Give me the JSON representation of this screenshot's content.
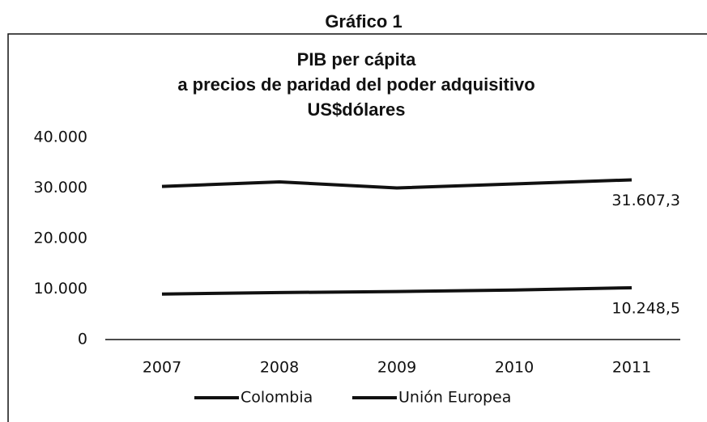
{
  "heading": "Gráfico 1",
  "chart_data": {
    "type": "line",
    "title": [
      "PIB per cápita",
      "a precios de paridad del poder adquisitivo",
      "US$dólares"
    ],
    "categories": [
      "2007",
      "2008",
      "2009",
      "2010",
      "2011"
    ],
    "series": [
      {
        "name": "Colombia",
        "color": "#111111",
        "values": [
          9000,
          9300,
          9500,
          9800,
          10248.5
        ],
        "value_labels": [
          null,
          null,
          null,
          null,
          "10.248,5"
        ]
      },
      {
        "name": "Unión Europea",
        "color": "#111111",
        "values": [
          30300,
          31200,
          30000,
          30800,
          31607.3
        ],
        "value_labels": [
          null,
          null,
          null,
          null,
          "31.607,3"
        ]
      }
    ],
    "ylim": [
      0,
      40000
    ],
    "yticks": [
      0,
      {
        "value": 10000,
        "label": "10.000"
      },
      {
        "value": 20000,
        "label": "20.000"
      },
      {
        "value": 30000,
        "label": "30.000"
      },
      {
        "value": 40000,
        "label": "40.000"
      }
    ],
    "grid": false,
    "legend": "bottom"
  }
}
